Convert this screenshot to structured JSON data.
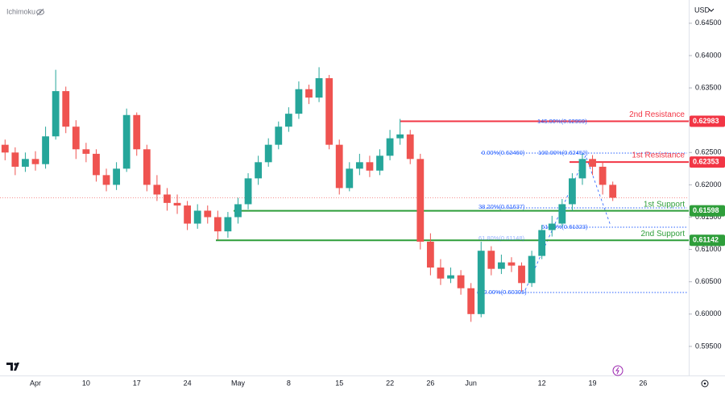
{
  "header": {
    "indicator": "Ichimoku",
    "currency": "USD"
  },
  "chart_data": {
    "type": "candlestick",
    "categories": [
      null,
      null,
      null,
      "Apr",
      null,
      null,
      null,
      null,
      "10",
      null,
      null,
      null,
      null,
      "17",
      null,
      null,
      null,
      null,
      "24",
      null,
      null,
      null,
      null,
      "May",
      null,
      null,
      null,
      null,
      "8",
      null,
      null,
      null,
      null,
      "15",
      null,
      null,
      null,
      null,
      "22",
      null,
      null,
      null,
      "26",
      null,
      null,
      null,
      "Jun",
      null,
      null,
      null,
      null,
      null,
      null,
      "12",
      null,
      null,
      null,
      null,
      "19",
      null,
      null,
      null,
      null,
      "26",
      null,
      null,
      null,
      null
    ],
    "open": [
      0.6262,
      0.625,
      0.6228,
      0.624,
      0.6232,
      0.6275,
      0.6345,
      0.629,
      0.6255,
      0.6248,
      0.6215,
      0.62,
      0.6225,
      0.6308,
      0.6255,
      0.62,
      0.6185,
      0.6172,
      0.6168,
      0.614,
      0.616,
      0.615,
      0.6128,
      0.615,
      0.617,
      0.621,
      0.6235,
      0.6262,
      0.629,
      0.631,
      0.6348,
      0.6335,
      0.6365,
      0.6262,
      0.6195,
      0.6225,
      0.6235,
      0.6222,
      0.6245,
      0.6272,
      0.6278,
      0.624,
      0.6112,
      0.6072,
      0.6055,
      0.606,
      0.604,
      0.6,
      0.6098,
      0.607,
      0.608,
      0.6075,
      0.6048,
      0.609,
      0.613,
      0.614,
      0.617,
      0.621,
      0.624,
      0.6228,
      0.62,
      null,
      null,
      null,
      null,
      null,
      null,
      null
    ],
    "high": [
      0.627,
      0.6258,
      0.625,
      0.6252,
      0.629,
      0.6378,
      0.6352,
      0.63,
      0.6265,
      0.6255,
      0.6225,
      0.6235,
      0.6318,
      0.6312,
      0.6262,
      0.6215,
      0.6195,
      0.6185,
      0.6175,
      0.617,
      0.6168,
      0.616,
      0.6158,
      0.618,
      0.6218,
      0.6245,
      0.6272,
      0.6298,
      0.632,
      0.636,
      0.6355,
      0.6382,
      0.637,
      0.627,
      0.6235,
      0.6248,
      0.6245,
      0.6255,
      0.6285,
      0.6302,
      0.6285,
      0.6248,
      0.6125,
      0.6085,
      0.6072,
      0.6068,
      0.6048,
      0.6112,
      0.6105,
      0.6092,
      0.6088,
      0.608,
      0.6098,
      0.6138,
      0.6152,
      0.6178,
      0.6218,
      0.6248,
      0.6246,
      0.6235,
      0.6205,
      null,
      null,
      null,
      null,
      null,
      null,
      null
    ],
    "low": [
      0.6238,
      0.6215,
      0.622,
      0.6222,
      0.6225,
      0.627,
      0.628,
      0.624,
      0.6235,
      0.6205,
      0.619,
      0.6192,
      0.622,
      0.6245,
      0.619,
      0.6175,
      0.616,
      0.6155,
      0.613,
      0.6132,
      0.614,
      0.6115,
      0.6118,
      0.614,
      0.6162,
      0.62,
      0.6228,
      0.6255,
      0.6282,
      0.6302,
      0.6325,
      0.6328,
      0.6255,
      0.6185,
      0.619,
      0.6215,
      0.6212,
      0.6215,
      0.6238,
      0.6262,
      0.6232,
      0.61,
      0.606,
      0.6045,
      0.6048,
      0.603,
      0.5988,
      0.5995,
      0.606,
      0.6062,
      0.6065,
      0.6035,
      0.6042,
      0.6085,
      0.612,
      0.6135,
      0.616,
      0.62,
      0.6215,
      0.6185,
      0.6175,
      null,
      null,
      null,
      null,
      null,
      null,
      null
    ],
    "close": [
      0.625,
      0.6228,
      0.624,
      0.6232,
      0.6275,
      0.6345,
      0.629,
      0.6255,
      0.6248,
      0.6215,
      0.62,
      0.6225,
      0.6308,
      0.6255,
      0.62,
      0.6185,
      0.6172,
      0.6168,
      0.614,
      0.616,
      0.615,
      0.6128,
      0.615,
      0.617,
      0.621,
      0.6235,
      0.6262,
      0.629,
      0.631,
      0.6348,
      0.6335,
      0.6365,
      0.6262,
      0.6195,
      0.6225,
      0.6235,
      0.6222,
      0.6245,
      0.6272,
      0.6278,
      0.624,
      0.6112,
      0.6072,
      0.6055,
      0.606,
      0.604,
      0.6,
      0.6098,
      0.607,
      0.608,
      0.6075,
      0.6048,
      0.609,
      0.613,
      0.614,
      0.617,
      0.621,
      0.624,
      0.6228,
      0.62,
      0.618,
      null,
      null,
      null,
      null,
      null,
      null,
      null
    ],
    "up_color": "#26a69a",
    "down_color": "#ef5350",
    "ylim": [
      0.5905,
      0.6486
    ],
    "yticks": [
      {
        "value": 0.595,
        "label": "0.59500"
      },
      {
        "value": 0.6,
        "label": "0.60000"
      },
      {
        "value": 0.605,
        "label": "0.60500"
      },
      {
        "value": 0.61,
        "label": "0.61000"
      },
      {
        "value": 0.615,
        "label": "0.61500"
      },
      {
        "value": 0.62,
        "label": "0.62000"
      },
      {
        "value": 0.625,
        "label": "0.62500"
      },
      {
        "value": 0.63,
        "label": "0.63000"
      },
      {
        "value": 0.635,
        "label": "0.63500"
      },
      {
        "value": 0.64,
        "label": "0.64000"
      },
      {
        "value": 0.645,
        "label": "0.64500"
      }
    ],
    "levels": [
      {
        "label": "2nd Resistance",
        "value": 0.62983,
        "color": "#f23645"
      },
      {
        "label": "1st Resistance",
        "value": 0.62353,
        "color": "#f23645"
      },
      {
        "label": "1st Support",
        "value": 0.61598,
        "color": "#2e9e3a"
      },
      {
        "label": "2nd Support",
        "value": 0.61142,
        "color": "#2e9e3a"
      }
    ],
    "annotations": [
      "145.00%(0.62959)",
      "0.00%(0.62460)",
      "100.00%(0.62452)",
      "38.20%(0.61637)",
      "61.80%(0.61323)",
      "61.80%(0.61148)",
      "100.00%(0.60305)"
    ]
  }
}
